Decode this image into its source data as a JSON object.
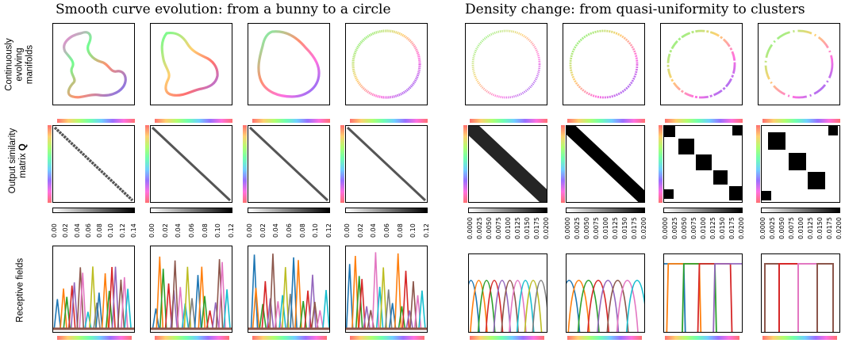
{
  "left_title": "Smooth curve evolution: from a bunny to a circle",
  "right_title": "Density change: from quasi-uniformity to clusters",
  "row_labels": {
    "manifolds": [
      "Continuously",
      "evolving",
      "manifolds"
    ],
    "similarity": [
      "Output similarity",
      "matrix"
    ],
    "similarity_bold": "Q",
    "receptive": "Receptive fields"
  },
  "colorbar_ticks": {
    "left_1": [
      "0.00",
      "0.02",
      "0.04",
      "0.06",
      "0.08",
      "0.10",
      "0.12",
      "0.14"
    ],
    "left_2_4": [
      "0.00",
      "0.02",
      "0.04",
      "0.06",
      "0.08",
      "0.10",
      "0.12"
    ],
    "right": [
      "0.0000",
      "0.0025",
      "0.0050",
      "0.0075",
      "0.0100",
      "0.0125",
      "0.0150",
      "0.0175",
      "0.0200"
    ]
  },
  "colors": {
    "hue_start": "#ff7070",
    "matrix_fill": "#000000"
  }
}
